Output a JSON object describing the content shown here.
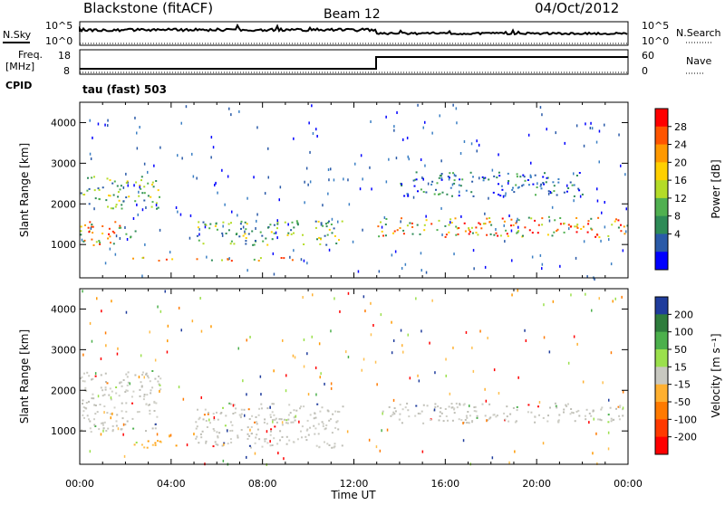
{
  "header": {
    "station": "Blackstone (fitACF)",
    "beam": "Beam 12",
    "date": "04/Oct/2012"
  },
  "labels": {
    "nsky": "N.Sky",
    "nsearch": "N.Search",
    "freq_line1": "Freq.",
    "freq_line2": "[MHz]",
    "nave": "Nave",
    "cpid": "CPID",
    "cpid_value": "tau (fast) 503",
    "ylabel": "Slant Range [km]",
    "xlabel": "Time UT"
  },
  "noise_axis": {
    "left_ticks": [
      "10^5",
      "10^0"
    ],
    "right_ticks": [
      "10^5",
      "10^0"
    ]
  },
  "freq_axis": {
    "left_ticks": [
      "18",
      "8"
    ],
    "right_ticks": [
      "60",
      "0"
    ]
  },
  "chart_data": [
    {
      "type": "heatmap",
      "panel": "power",
      "ylabel": "Slant Range [km]",
      "ylim": [
        180,
        4500
      ],
      "yticks": [
        "1000",
        "2000",
        "3000",
        "4000"
      ],
      "xlim_hours": [
        0,
        24
      ],
      "xticks": [
        "00:00",
        "04:00",
        "08:00",
        "12:00",
        "16:00",
        "20:00",
        "00:00"
      ],
      "colorbar": {
        "label": "Power [dB]",
        "ticks": [
          "28",
          "24",
          "20",
          "16",
          "12",
          "8",
          "4"
        ],
        "colors": [
          "#ff0000",
          "#ff5500",
          "#ff9900",
          "#ffd000",
          "#b4dc28",
          "#50b050",
          "#2e8b57",
          "#2a5aa8",
          "#0000ff"
        ]
      },
      "features": [
        {
          "t_start": 0,
          "t_end": 2.5,
          "range_start": 1000,
          "range_end": 1600,
          "level": "high"
        },
        {
          "t_start": 0,
          "t_end": 3.5,
          "range_start": 1900,
          "range_end": 2700,
          "level": "medium"
        },
        {
          "t_start": 2.3,
          "t_end": 11.3,
          "range_start": 620,
          "range_end": 700,
          "level": "high"
        },
        {
          "t_start": 5.0,
          "t_end": 11.5,
          "range_start": 1000,
          "range_end": 1600,
          "level": "medium"
        },
        {
          "t_start": 13.0,
          "t_end": 24,
          "range_start": 1200,
          "range_end": 1700,
          "level": "high"
        },
        {
          "t_start": 14.0,
          "t_end": 22.0,
          "range_start": 2200,
          "range_end": 2800,
          "level": "low"
        }
      ]
    },
    {
      "type": "heatmap",
      "panel": "velocity",
      "ylabel": "Slant Range [km]",
      "ylim": [
        180,
        4500
      ],
      "yticks": [
        "1000",
        "2000",
        "3000",
        "4000"
      ],
      "xlim_hours": [
        0,
        24
      ],
      "xticks": [
        "00:00",
        "04:00",
        "08:00",
        "12:00",
        "16:00",
        "20:00",
        "00:00"
      ],
      "colorbar": {
        "label": "Velocity [m s⁻¹]",
        "ticks": [
          "200",
          "100",
          "50",
          "15",
          "-15",
          "-50",
          "-100",
          "-200"
        ],
        "colors": [
          "#1f3c9c",
          "#2e7c3c",
          "#4cb04c",
          "#9be04c",
          "#c8c8c0",
          "#ffb030",
          "#ff7a00",
          "#ff3a00",
          "#ff0000"
        ]
      },
      "features": [
        {
          "t_start": 0,
          "t_end": 3.5,
          "range_start": 1000,
          "range_end": 2500,
          "value": "ground scatter"
        },
        {
          "t_start": 2.3,
          "t_end": 4.5,
          "range_start": 600,
          "range_end": 800,
          "value": "-50"
        },
        {
          "t_start": 5.0,
          "t_end": 11.5,
          "range_start": 600,
          "range_end": 1700,
          "value": "ground scatter"
        },
        {
          "t_start": 13.0,
          "t_end": 24,
          "range_start": 1200,
          "range_end": 1700,
          "value": "ground scatter"
        }
      ]
    }
  ]
}
